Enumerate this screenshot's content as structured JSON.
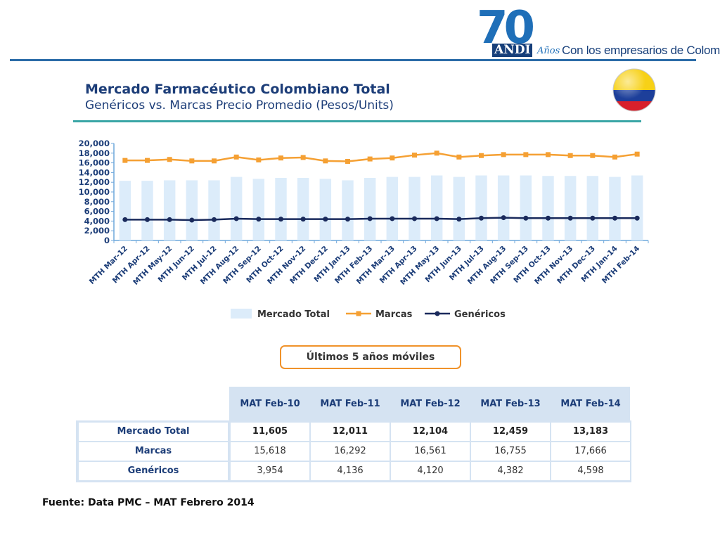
{
  "header": {
    "logo_number": "70",
    "logo_org": "ANDI",
    "logo_anos": "Años",
    "tagline": "Con los empresarios de Colombia"
  },
  "title": "Mercado Farmacéutico Colombiano Total",
  "subtitle": "Genéricos vs. Marcas Precio Promedio (Pesos/Units)",
  "colors": {
    "bars": "#dcecfa",
    "marcas": "#f5a033",
    "genericos": "#1a2a5c",
    "accent_blue": "#1c3d78",
    "teal_rule": "#3aa6a6"
  },
  "chart_data": {
    "type": "bar",
    "categories": [
      "MTH Mar-12",
      "MTH Apr-12",
      "MTH May-12",
      "MTH Jun-12",
      "MTH Jul-12",
      "MTH Aug-12",
      "MTH Sep-12",
      "MTH Oct-12",
      "MTH Nov-12",
      "MTH Dec-12",
      "MTH Jan-13",
      "MTH Feb-13",
      "MTH Mar-13",
      "MTH Apr-13",
      "MTH May-13",
      "MTH Jun-13",
      "MTH Jul-13",
      "MTH Aug-13",
      "MTH Sep-13",
      "MTH Oct-13",
      "MTH Nov-13",
      "MTH Dec-13",
      "MTH Jan-14",
      "MTH Feb-14"
    ],
    "series": [
      {
        "name": "Mercado Total",
        "kind": "bar",
        "values": [
          12300,
          12300,
          12400,
          12400,
          12400,
          13100,
          12700,
          12900,
          12900,
          12700,
          12400,
          12900,
          13100,
          13100,
          13400,
          13100,
          13400,
          13400,
          13400,
          13300,
          13300,
          13300,
          13100,
          13400
        ]
      },
      {
        "name": "Marcas",
        "kind": "line",
        "values": [
          16500,
          16500,
          16700,
          16400,
          16400,
          17200,
          16600,
          17000,
          17100,
          16400,
          16300,
          16800,
          17000,
          17600,
          18000,
          17200,
          17500,
          17700,
          17700,
          17700,
          17500,
          17500,
          17200,
          17800
        ]
      },
      {
        "name": "Genéricos",
        "kind": "line",
        "values": [
          4300,
          4300,
          4300,
          4200,
          4300,
          4500,
          4400,
          4400,
          4400,
          4400,
          4400,
          4500,
          4500,
          4500,
          4500,
          4400,
          4600,
          4700,
          4600,
          4600,
          4600,
          4600,
          4600,
          4600
        ]
      }
    ],
    "ylim": [
      0,
      20000
    ],
    "yticks": [
      "20,000",
      "18,000",
      "16,000",
      "14,000",
      "12,000",
      "10,000",
      "8,000",
      "6,000",
      "4,000",
      "2,000",
      "0"
    ],
    "legend_position": "bottom",
    "grid": false
  },
  "badge": "Últimos 5 años móviles",
  "table": {
    "columns": [
      "MAT Feb-10",
      "MAT Feb-11",
      "MAT Feb-12",
      "MAT Feb-13",
      "MAT Feb-14"
    ],
    "rows": [
      {
        "label": "Mercado Total",
        "values": [
          "11,605",
          "12,011",
          "12,104",
          "12,459",
          "13,183"
        ]
      },
      {
        "label": "Marcas",
        "values": [
          "15,618",
          "16,292",
          "16,561",
          "16,755",
          "17,666"
        ]
      },
      {
        "label": "Genéricos",
        "values": [
          "3,954",
          "4,136",
          "4,120",
          "4,382",
          "4,598"
        ]
      }
    ]
  },
  "source": "Fuente: Data PMC – MAT Febrero 2014"
}
